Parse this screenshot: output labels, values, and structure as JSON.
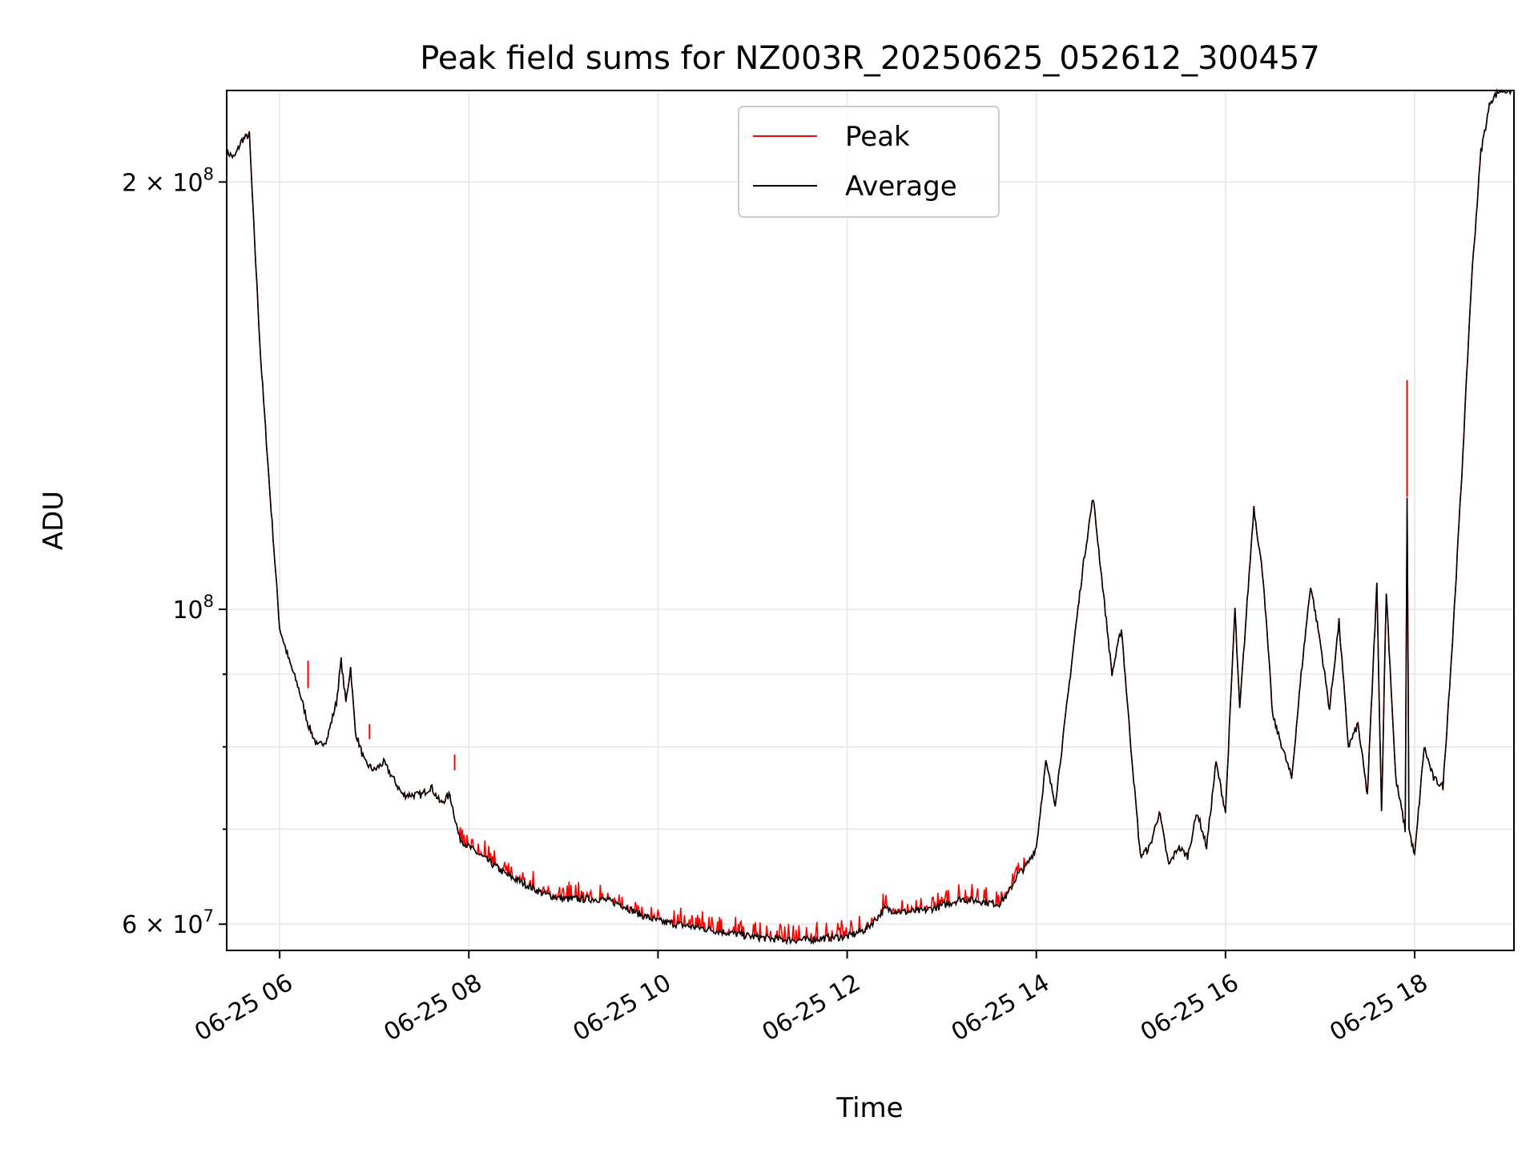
{
  "chart_data": {
    "type": "line",
    "title": "Peak field sums for NZ003R_20250625_052612_300457",
    "xlabel": "Time",
    "ylabel": "ADU",
    "xlim_hours": [
      5.44,
      19.05
    ],
    "ylim": [
      57500000,
      232000000
    ],
    "yscale": "log",
    "grid": true,
    "legend_position": "top-center",
    "x_ticks": [
      {
        "hour": 6,
        "label": "06-25 06"
      },
      {
        "hour": 8,
        "label": "06-25 08"
      },
      {
        "hour": 10,
        "label": "06-25 10"
      },
      {
        "hour": 12,
        "label": "06-25 12"
      },
      {
        "hour": 14,
        "label": "06-25 14"
      },
      {
        "hour": 16,
        "label": "06-25 16"
      },
      {
        "hour": 18,
        "label": "06-25 18"
      }
    ],
    "y_ticks": [
      {
        "value": 200000000,
        "mant": "2",
        "exp": "8"
      },
      {
        "value": 100000000,
        "mant": "",
        "exp": "8"
      },
      {
        "value": 60000000,
        "mant": "6",
        "exp": "7"
      }
    ],
    "y_minor": [
      70000000,
      80000000,
      90000000
    ],
    "series": [
      {
        "name": "Average",
        "color": "#000000",
        "points": [
          [
            5.44,
            210000000
          ],
          [
            5.52,
            208000000
          ],
          [
            5.6,
            214000000
          ],
          [
            5.68,
            216000000
          ],
          [
            5.72,
            190000000
          ],
          [
            5.8,
            150000000
          ],
          [
            5.9,
            120000000
          ],
          [
            6.0,
            97000000
          ],
          [
            6.1,
            92000000
          ],
          [
            6.2,
            88000000
          ],
          [
            6.3,
            83000000
          ],
          [
            6.4,
            80000000
          ],
          [
            6.5,
            81000000
          ],
          [
            6.6,
            86000000
          ],
          [
            6.65,
            92000000
          ],
          [
            6.7,
            86000000
          ],
          [
            6.75,
            91000000
          ],
          [
            6.8,
            82000000
          ],
          [
            6.9,
            78000000
          ],
          [
            7.0,
            77000000
          ],
          [
            7.1,
            78000000
          ],
          [
            7.2,
            76000000
          ],
          [
            7.3,
            74000000
          ],
          [
            7.4,
            74000000
          ],
          [
            7.5,
            74000000
          ],
          [
            7.6,
            75000000
          ],
          [
            7.7,
            73000000
          ],
          [
            7.8,
            74000000
          ],
          [
            7.9,
            69000000
          ],
          [
            8.0,
            68000000
          ],
          [
            8.2,
            66500000
          ],
          [
            8.4,
            65000000
          ],
          [
            8.6,
            64000000
          ],
          [
            8.8,
            63000000
          ],
          [
            9.0,
            62500000
          ],
          [
            9.2,
            62500000
          ],
          [
            9.4,
            62500000
          ],
          [
            9.6,
            62000000
          ],
          [
            9.8,
            61000000
          ],
          [
            10.0,
            60300000
          ],
          [
            10.2,
            60000000
          ],
          [
            10.4,
            59700000
          ],
          [
            10.6,
            59400000
          ],
          [
            10.8,
            59100000
          ],
          [
            11.0,
            58800000
          ],
          [
            11.2,
            58600000
          ],
          [
            11.4,
            58500000
          ],
          [
            11.6,
            58500000
          ],
          [
            11.8,
            58700000
          ],
          [
            12.0,
            58800000
          ],
          [
            12.2,
            59500000
          ],
          [
            12.4,
            61500000
          ],
          [
            12.6,
            61200000
          ],
          [
            12.8,
            61300000
          ],
          [
            13.0,
            61800000
          ],
          [
            13.2,
            62500000
          ],
          [
            13.4,
            62300000
          ],
          [
            13.6,
            62000000
          ],
          [
            13.7,
            63000000
          ],
          [
            13.8,
            65000000
          ],
          [
            13.9,
            66000000
          ],
          [
            14.0,
            68000000
          ],
          [
            14.1,
            78000000
          ],
          [
            14.2,
            73000000
          ],
          [
            14.3,
            83000000
          ],
          [
            14.4,
            95000000
          ],
          [
            14.5,
            108000000
          ],
          [
            14.6,
            120000000
          ],
          [
            14.7,
            104000000
          ],
          [
            14.8,
            90000000
          ],
          [
            14.9,
            97000000
          ],
          [
            15.0,
            80000000
          ],
          [
            15.1,
            67000000
          ],
          [
            15.2,
            68000000
          ],
          [
            15.3,
            72000000
          ],
          [
            15.4,
            66000000
          ],
          [
            15.5,
            68000000
          ],
          [
            15.6,
            67000000
          ],
          [
            15.7,
            72000000
          ],
          [
            15.8,
            68000000
          ],
          [
            15.9,
            78000000
          ],
          [
            16.0,
            72000000
          ],
          [
            16.1,
            100000000
          ],
          [
            16.15,
            85000000
          ],
          [
            16.3,
            118000000
          ],
          [
            16.4,
            105000000
          ],
          [
            16.5,
            84000000
          ],
          [
            16.6,
            80000000
          ],
          [
            16.7,
            76000000
          ],
          [
            16.8,
            90000000
          ],
          [
            16.9,
            104000000
          ],
          [
            17.0,
            95000000
          ],
          [
            17.1,
            85000000
          ],
          [
            17.2,
            98000000
          ],
          [
            17.3,
            80000000
          ],
          [
            17.4,
            83000000
          ],
          [
            17.5,
            74000000
          ],
          [
            17.6,
            104000000
          ],
          [
            17.65,
            72000000
          ],
          [
            17.7,
            103000000
          ],
          [
            17.8,
            76000000
          ],
          [
            17.9,
            70000000
          ],
          [
            17.92,
            120000000
          ],
          [
            17.94,
            70000000
          ],
          [
            18.0,
            67000000
          ],
          [
            18.1,
            80000000
          ],
          [
            18.2,
            76000000
          ],
          [
            18.3,
            75000000
          ],
          [
            18.4,
            95000000
          ],
          [
            18.5,
            125000000
          ],
          [
            18.6,
            170000000
          ],
          [
            18.7,
            210000000
          ],
          [
            18.8,
            228000000
          ],
          [
            18.9,
            232000000
          ],
          [
            19.05,
            232000000
          ]
        ]
      },
      {
        "name": "Peak",
        "color": "#ff0000",
        "spikes": [
          [
            17.92,
            120000000,
            145000000
          ],
          [
            6.3,
            88000000,
            92000000
          ],
          [
            6.95,
            81000000,
            83000000
          ],
          [
            7.85,
            77000000,
            79000000
          ]
        ],
        "noise_band": [
          [
            7.9,
            13.9,
            0.012
          ]
        ]
      }
    ]
  }
}
